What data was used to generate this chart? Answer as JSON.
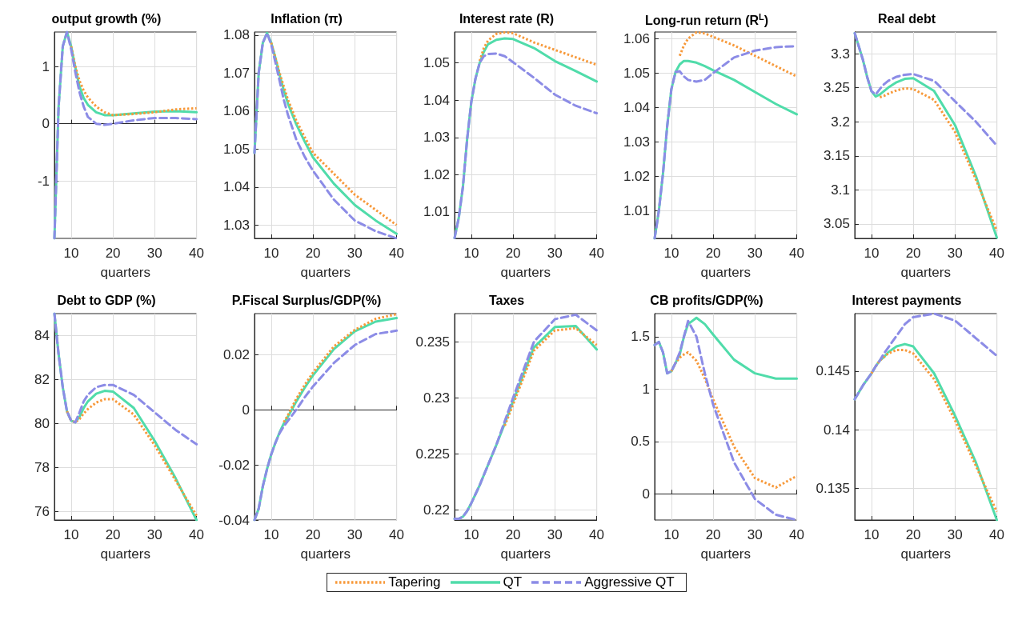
{
  "chart_data": [
    {
      "type": "line",
      "title": "output growth (%)",
      "xlabel": "quarters",
      "x": [
        6,
        7,
        8,
        9,
        10,
        11,
        12,
        13,
        14,
        16,
        18,
        20,
        25,
        30,
        35,
        40
      ],
      "xlim": [
        6,
        40
      ],
      "xticks": [
        10,
        20,
        30,
        40
      ],
      "ylim": [
        -2,
        1.6
      ],
      "yticks": [
        -1,
        0,
        1
      ],
      "grid": true,
      "legend": "bottom",
      "series": [
        {
          "name": "Tapering",
          "color": "#f7993a",
          "line_style": "dotted",
          "values": [
            null,
            null,
            null,
            null,
            1.35,
            1.0,
            0.75,
            0.58,
            0.46,
            0.3,
            0.2,
            0.15,
            0.17,
            0.2,
            0.25,
            0.27
          ]
        },
        {
          "name": "QT",
          "color": "#50dcaa",
          "line_style": "solid",
          "values": [
            -2,
            0.3,
            1.35,
            1.6,
            1.35,
            0.98,
            0.65,
            0.45,
            0.33,
            0.2,
            0.15,
            0.15,
            0.18,
            0.21,
            0.22,
            0.2
          ]
        },
        {
          "name": "Aggressive QT",
          "color": "#8c8ce6",
          "line_style": "dashed",
          "values": [
            -2,
            0.3,
            1.35,
            1.6,
            1.3,
            0.9,
            0.55,
            0.3,
            0.12,
            0.0,
            -0.02,
            0.0,
            0.06,
            0.1,
            0.1,
            0.08
          ]
        }
      ]
    },
    {
      "type": "line",
      "title": "Inflation (π)",
      "xlabel": "quarters",
      "x": [
        6,
        7,
        8,
        9,
        10,
        11,
        12,
        13,
        14,
        16,
        18,
        20,
        25,
        30,
        35,
        40
      ],
      "xlim": [
        6,
        40
      ],
      "xticks": [
        10,
        20,
        30,
        40
      ],
      "ylim": [
        1.0265,
        1.0808
      ],
      "yticks": [
        1.03,
        1.04,
        1.05,
        1.06,
        1.07,
        1.08
      ],
      "grid": true,
      "series": [
        {
          "color": "#f7993a",
          "line_style": "dotted",
          "values": [
            null,
            null,
            null,
            null,
            1.078,
            1.074,
            1.07,
            1.0665,
            1.063,
            1.0575,
            1.0532,
            1.049,
            1.0435,
            1.038,
            1.034,
            1.03
          ]
        },
        {
          "color": "#50dcaa",
          "line_style": "solid",
          "values": [
            1.049,
            1.07,
            1.078,
            1.0805,
            1.078,
            1.074,
            1.0695,
            1.0655,
            1.062,
            1.0565,
            1.052,
            1.0478,
            1.0409,
            1.0353,
            1.0312,
            1.0277
          ]
        },
        {
          "color": "#8c8ce6",
          "line_style": "dashed",
          "values": [
            1.049,
            1.07,
            1.078,
            1.0805,
            1.0775,
            1.0728,
            1.068,
            1.063,
            1.059,
            1.0525,
            1.048,
            1.0443,
            1.0367,
            1.0312,
            1.0284,
            1.0265
          ]
        }
      ]
    },
    {
      "type": "line",
      "title": "Interest rate (R)",
      "xlabel": "quarters",
      "x": [
        6,
        7,
        8,
        9,
        10,
        11,
        12,
        13,
        14,
        16,
        18,
        20,
        25,
        30,
        35,
        40
      ],
      "xlim": [
        6,
        40
      ],
      "xticks": [
        10,
        20,
        30,
        40
      ],
      "ylim": [
        1.0029,
        1.0583
      ],
      "yticks": [
        1.01,
        1.02,
        1.03,
        1.04,
        1.05
      ],
      "grid": true,
      "series": [
        {
          "color": "#f7993a",
          "line_style": "dotted",
          "values": [
            null,
            null,
            null,
            null,
            null,
            null,
            1.0505,
            1.054,
            1.056,
            1.0578,
            1.0582,
            1.058,
            1.0555,
            1.0535,
            1.0515,
            1.0495
          ]
        },
        {
          "color": "#50dcaa",
          "line_style": "solid",
          "values": [
            1.003,
            1.0084,
            1.0168,
            1.0295,
            1.0395,
            1.0458,
            1.05,
            1.053,
            1.055,
            1.0562,
            1.0566,
            1.0564,
            1.054,
            1.0505,
            1.0478,
            1.045
          ]
        },
        {
          "color": "#8c8ce6",
          "line_style": "dashed",
          "values": [
            1.003,
            1.0084,
            1.0168,
            1.0295,
            1.0395,
            1.0458,
            1.05,
            1.0518,
            1.0524,
            1.0525,
            1.0518,
            1.0502,
            1.046,
            1.0415,
            1.0385,
            1.0365
          ]
        }
      ]
    },
    {
      "type": "line",
      "title": "Long-run return (R$^{L}$)",
      "xlabel": "quarters",
      "x": [
        6,
        7,
        8,
        9,
        10,
        11,
        12,
        13,
        14,
        16,
        18,
        20,
        25,
        30,
        35,
        40
      ],
      "xlim": [
        6,
        40
      ],
      "xticks": [
        10,
        20,
        30,
        40
      ],
      "ylim": [
        1.002,
        1.0619
      ],
      "yticks": [
        1.01,
        1.02,
        1.03,
        1.04,
        1.05,
        1.06
      ],
      "grid": true,
      "series": [
        {
          "color": "#f7993a",
          "line_style": "dotted",
          "values": [
            null,
            null,
            null,
            null,
            null,
            null,
            1.055,
            1.058,
            1.06,
            1.0618,
            1.0615,
            1.0605,
            1.058,
            1.055,
            1.052,
            1.049
          ]
        },
        {
          "color": "#50dcaa",
          "line_style": "solid",
          "values": [
            1.002,
            1.01,
            1.0209,
            1.0346,
            1.0453,
            1.0503,
            1.0525,
            1.0535,
            1.0535,
            1.053,
            1.052,
            1.0508,
            1.048,
            1.0445,
            1.041,
            1.038
          ]
        },
        {
          "color": "#8c8ce6",
          "line_style": "dashed",
          "values": [
            1.002,
            1.01,
            1.0209,
            1.0346,
            1.0453,
            1.0503,
            1.0505,
            1.049,
            1.048,
            1.0475,
            1.048,
            1.05,
            1.0545,
            1.0565,
            1.0575,
            1.0578
          ]
        }
      ]
    },
    {
      "type": "line",
      "title": "Real debt",
      "xlabel": "quarters",
      "x": [
        6,
        7,
        8,
        9,
        10,
        11,
        12,
        13,
        14,
        16,
        18,
        20,
        25,
        30,
        35,
        40
      ],
      "xlim": [
        6,
        40
      ],
      "xticks": [
        10,
        20,
        30,
        40
      ],
      "ylim": [
        3.0288,
        3.3317
      ],
      "yticks": [
        3.05,
        3.1,
        3.15,
        3.2,
        3.25,
        3.3
      ],
      "grid": true,
      "series": [
        {
          "color": "#f7993a",
          "line_style": "dotted",
          "values": [
            null,
            null,
            null,
            null,
            null,
            null,
            3.236,
            3.238,
            3.241,
            3.246,
            3.249,
            3.248,
            3.232,
            3.185,
            3.115,
            3.04
          ]
        },
        {
          "color": "#50dcaa",
          "line_style": "solid",
          "values": [
            3.33,
            3.31,
            3.29,
            3.265,
            3.245,
            3.237,
            3.24,
            3.245,
            3.25,
            3.258,
            3.263,
            3.264,
            3.245,
            3.195,
            3.12,
            3.03
          ]
        },
        {
          "color": "#8c8ce6",
          "line_style": "dashed",
          "values": [
            3.33,
            3.31,
            3.29,
            3.265,
            3.245,
            3.24,
            3.248,
            3.255,
            3.26,
            3.266,
            3.269,
            3.27,
            3.26,
            3.23,
            3.2,
            3.165
          ]
        }
      ]
    },
    {
      "type": "line",
      "title": "Debt to GDP (%)",
      "xlabel": "quarters",
      "x": [
        6,
        7,
        8,
        9,
        10,
        11,
        12,
        13,
        14,
        16,
        18,
        20,
        25,
        30,
        35,
        40
      ],
      "xlim": [
        6,
        40
      ],
      "xticks": [
        10,
        20,
        30,
        40
      ],
      "ylim": [
        75.6,
        85
      ],
      "yticks": [
        76,
        78,
        80,
        82,
        84
      ],
      "grid": true,
      "series": [
        {
          "color": "#f7993a",
          "line_style": "dotted",
          "values": [
            null,
            null,
            null,
            80.55,
            80.12,
            80.05,
            80.2,
            80.45,
            80.65,
            80.95,
            81.1,
            81.1,
            80.4,
            79.0,
            77.4,
            75.8
          ]
        },
        {
          "color": "#50dcaa",
          "line_style": "solid",
          "values": [
            85,
            83.15,
            81.64,
            80.55,
            80.12,
            80.05,
            80.3,
            80.7,
            81.0,
            81.35,
            81.48,
            81.45,
            80.7,
            79.2,
            77.5,
            75.6
          ]
        },
        {
          "color": "#8c8ce6",
          "line_style": "dashed",
          "values": [
            85,
            83.15,
            81.64,
            80.55,
            80.12,
            80.05,
            80.5,
            81.0,
            81.3,
            81.65,
            81.75,
            81.75,
            81.3,
            80.5,
            79.7,
            79.05
          ]
        }
      ]
    },
    {
      "type": "line",
      "title": "P.Fiscal Surplus/GDP(%)",
      "xlabel": "quarters",
      "x": [
        6,
        7,
        8,
        9,
        10,
        11,
        12,
        13,
        14,
        16,
        18,
        20,
        25,
        30,
        35,
        40
      ],
      "xlim": [
        6,
        40
      ],
      "xticks": [
        10,
        20,
        30,
        40
      ],
      "ylim": [
        -0.04,
        0.0349
      ],
      "yticks": [
        -0.04,
        -0.02,
        0,
        0.02
      ],
      "grid": true,
      "series": [
        {
          "color": "#f7993a",
          "line_style": "dotted",
          "values": [
            null,
            null,
            null,
            null,
            null,
            null,
            null,
            -0.0045,
            -0.002,
            0.004,
            0.009,
            0.0135,
            0.023,
            0.029,
            0.033,
            0.0347
          ]
        },
        {
          "color": "#50dcaa",
          "line_style": "solid",
          "values": [
            -0.04,
            -0.0359,
            -0.0277,
            -0.0215,
            -0.0162,
            -0.012,
            -0.0082,
            -0.005,
            -0.0025,
            0.003,
            0.008,
            0.0125,
            0.022,
            0.0285,
            0.032,
            0.0333
          ]
        },
        {
          "color": "#8c8ce6",
          "line_style": "dashed",
          "values": [
            -0.04,
            -0.0359,
            -0.0277,
            -0.0215,
            -0.0162,
            -0.012,
            -0.0085,
            -0.006,
            -0.004,
            0.0,
            0.0045,
            0.0085,
            0.017,
            0.0235,
            0.0275,
            0.0287
          ]
        }
      ]
    },
    {
      "type": "line",
      "title": "Taxes",
      "xlabel": "quarters",
      "x": [
        6,
        7,
        8,
        9,
        10,
        11,
        12,
        13,
        14,
        16,
        18,
        20,
        25,
        30,
        35,
        40
      ],
      "xlim": [
        6,
        40
      ],
      "xticks": [
        10,
        20,
        30,
        40
      ],
      "ylim": [
        0.2191,
        0.2375
      ],
      "yticks": [
        0.22,
        0.225,
        0.23,
        0.235
      ],
      "grid": true,
      "series": [
        {
          "color": "#f7993a",
          "line_style": "dotted",
          "values": [
            null,
            null,
            null,
            null,
            null,
            null,
            null,
            null,
            null,
            null,
            0.2275,
            0.2294,
            0.2342,
            0.236,
            0.2362,
            0.2347
          ]
        },
        {
          "color": "#50dcaa",
          "line_style": "solid",
          "values": [
            0.2192,
            0.2192,
            0.2194,
            0.2199,
            0.2206,
            0.2214,
            0.2222,
            0.2231,
            0.224,
            0.2258,
            0.2277,
            0.2297,
            0.2345,
            0.2363,
            0.2364,
            0.2343
          ]
        },
        {
          "color": "#8c8ce6",
          "line_style": "dashed",
          "values": [
            0.2192,
            0.2192,
            0.2194,
            0.2199,
            0.2206,
            0.2214,
            0.2222,
            0.2231,
            0.224,
            0.2258,
            0.2279,
            0.23,
            0.235,
            0.237,
            0.2374,
            0.236
          ]
        }
      ]
    },
    {
      "type": "line",
      "title": "CB profits/GDP(%)",
      "xlabel": "quarters",
      "x": [
        6,
        7,
        8,
        9,
        10,
        11,
        12,
        13,
        14,
        16,
        18,
        20,
        25,
        30,
        35,
        40
      ],
      "xlim": [
        6,
        40
      ],
      "xticks": [
        10,
        20,
        30,
        40
      ],
      "ylim": [
        -0.25,
        1.72
      ],
      "yticks": [
        0,
        0.5,
        1,
        1.5
      ],
      "grid": true,
      "series": [
        {
          "color": "#f7993a",
          "line_style": "dotted",
          "values": [
            null,
            null,
            null,
            null,
            1.17,
            1.25,
            1.3,
            1.33,
            1.35,
            1.27,
            1.1,
            0.9,
            0.45,
            0.15,
            0.06,
            0.17
          ]
        },
        {
          "color": "#50dcaa",
          "line_style": "solid",
          "values": [
            1.42,
            1.45,
            1.35,
            1.15,
            1.17,
            1.25,
            1.33,
            1.5,
            1.62,
            1.68,
            1.62,
            1.52,
            1.28,
            1.15,
            1.1,
            1.1
          ]
        },
        {
          "color": "#8c8ce6",
          "line_style": "dashed",
          "values": [
            1.42,
            1.45,
            1.35,
            1.15,
            1.17,
            1.25,
            1.35,
            1.5,
            1.65,
            1.5,
            1.15,
            0.85,
            0.3,
            -0.05,
            -0.2,
            -0.25
          ]
        }
      ]
    },
    {
      "type": "line",
      "title": "Interest payments",
      "xlabel": "quarters",
      "x": [
        6,
        7,
        8,
        9,
        10,
        11,
        12,
        13,
        14,
        16,
        18,
        20,
        25,
        30,
        35,
        40
      ],
      "xlim": [
        6,
        40
      ],
      "xticks": [
        10,
        20,
        30,
        40
      ],
      "ylim": [
        0.1323,
        0.1499
      ],
      "yticks": [
        0.135,
        0.14,
        0.145
      ],
      "grid": true,
      "series": [
        {
          "color": "#f7993a",
          "line_style": "dotted",
          "values": [
            null,
            null,
            null,
            null,
            0.1448,
            0.1454,
            0.1459,
            0.1462,
            0.1465,
            0.1468,
            0.1468,
            0.1465,
            0.1443,
            0.1408,
            0.1369,
            0.133
          ]
        },
        {
          "color": "#50dcaa",
          "line_style": "solid",
          "values": [
            0.1426,
            0.1432,
            0.1438,
            0.1443,
            0.1448,
            0.1454,
            0.1459,
            0.1462,
            0.1466,
            0.1471,
            0.1473,
            0.1471,
            0.1448,
            0.1412,
            0.1372,
            0.1323
          ]
        },
        {
          "color": "#8c8ce6",
          "line_style": "dashed",
          "values": [
            0.1426,
            0.1432,
            0.1438,
            0.1443,
            0.1448,
            0.1454,
            0.1459,
            0.1465,
            0.147,
            0.148,
            0.149,
            0.1496,
            0.1499,
            0.1493,
            0.1478,
            0.1463
          ]
        }
      ]
    }
  ]
}
